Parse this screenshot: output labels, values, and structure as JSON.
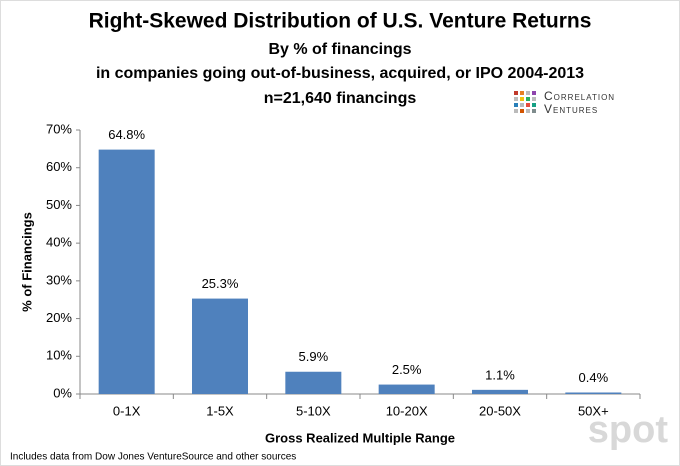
{
  "chart_data": {
    "type": "bar",
    "title": "Right-Skewed Distribution of U.S. Venture Returns",
    "subtitle": [
      "By % of financings",
      "in companies going out-of-business, acquired, or IPO 2004-2013",
      "n=21,640 financings"
    ],
    "categories": [
      "0-1X",
      "1-5X",
      "5-10X",
      "10-20X",
      "20-50X",
      "50X+"
    ],
    "values": [
      64.8,
      25.3,
      5.9,
      2.5,
      1.1,
      0.4
    ],
    "value_labels": [
      "64.8%",
      "25.3%",
      "5.9%",
      "2.5%",
      "1.1%",
      "0.4%"
    ],
    "color": "#4f81bd",
    "ylim": [
      0,
      70
    ],
    "yticks": [
      {
        "value": 0,
        "label": "0%"
      },
      {
        "value": 10,
        "label": "10%"
      },
      {
        "value": 20,
        "label": "20%"
      },
      {
        "value": 30,
        "label": "30%"
      },
      {
        "value": 40,
        "label": "40%"
      },
      {
        "value": 50,
        "label": "50%"
      },
      {
        "value": 60,
        "label": "60%"
      },
      {
        "value": 70,
        "label": "70%"
      }
    ],
    "xlabel": "Gross Realized Multiple Range",
    "ylabel": "% of Financings",
    "grid": false,
    "note": "Includes data from Dow Jones VentureSource and other sources"
  },
  "logo": {
    "lines": [
      "Correlation",
      "Ventures"
    ]
  },
  "watermark": "spot"
}
